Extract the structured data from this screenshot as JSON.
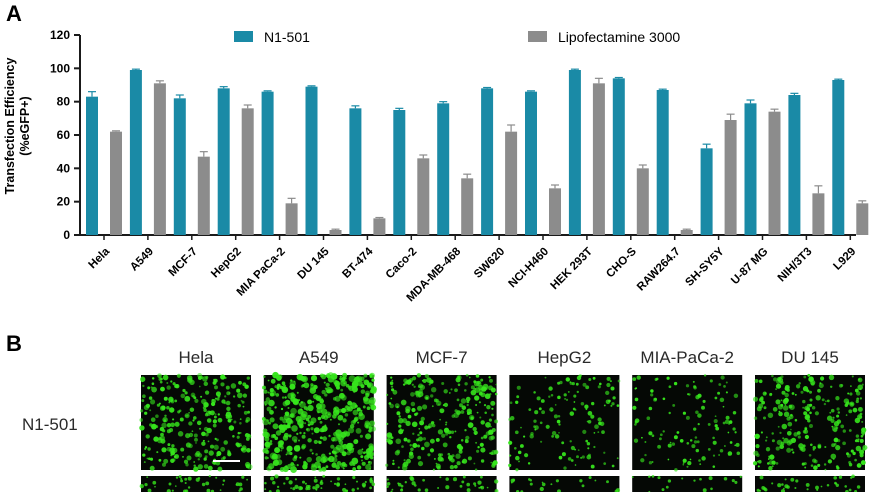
{
  "panel_a_letter": "A",
  "panel_b_letter": "B",
  "chart_data": {
    "type": "bar",
    "title": "",
    "xlabel": "",
    "ylabel_line1": "Transfection Efficiency",
    "ylabel_line2": "(%eGFP+)",
    "ylim": [
      0,
      120
    ],
    "yticks": [
      0,
      20,
      40,
      60,
      80,
      100,
      120
    ],
    "grid": false,
    "legend_position": "top",
    "categories": [
      "Hela",
      "A549",
      "MCF-7",
      "HepG2",
      "MIA PaCa-2",
      "DU 145",
      "BT-474",
      "Caco-2",
      "MDA-MB-468",
      "SW620",
      "NCI-H460",
      "HEK 293T",
      "CHO-S",
      "RAW264.7",
      "SH-SY5Y",
      "U-87 MG",
      "NIH/3T3",
      "L929"
    ],
    "series": [
      {
        "name": "N1-501",
        "color": "#1a8aa6",
        "values": [
          83,
          99,
          82,
          88,
          86,
          89,
          76,
          75,
          79,
          88,
          86,
          99,
          94,
          87,
          52,
          79,
          84,
          93
        ],
        "errors": [
          3,
          0.5,
          2,
          1,
          0.5,
          0.5,
          1.5,
          1,
          1,
          0.5,
          0.5,
          0.5,
          0.5,
          0.5,
          2.5,
          2,
          1,
          0.5
        ]
      },
      {
        "name": "Lipofectamine 3000",
        "color": "#8c8c8c",
        "values": [
          62,
          91,
          47,
          76,
          19,
          3,
          10,
          46,
          34,
          62,
          28,
          91,
          40,
          3,
          69,
          74,
          25,
          19
        ],
        "errors": [
          0.5,
          1.5,
          3,
          2,
          3,
          0.5,
          0.5,
          2,
          2.5,
          4,
          2,
          3,
          2,
          0.5,
          3.5,
          1.5,
          4.5,
          1.5
        ]
      }
    ]
  },
  "panel_b": {
    "columns": [
      "Hela",
      "A549",
      "MCF-7",
      "HepG2",
      "MIA-PaCa-2",
      "DU 145"
    ],
    "rows": [
      "N1-501"
    ],
    "image_colors": {
      "signal": "#36e51c",
      "background": "#050805"
    },
    "densities": [
      0.55,
      0.9,
      0.55,
      0.22,
      0.18,
      0.5
    ]
  }
}
